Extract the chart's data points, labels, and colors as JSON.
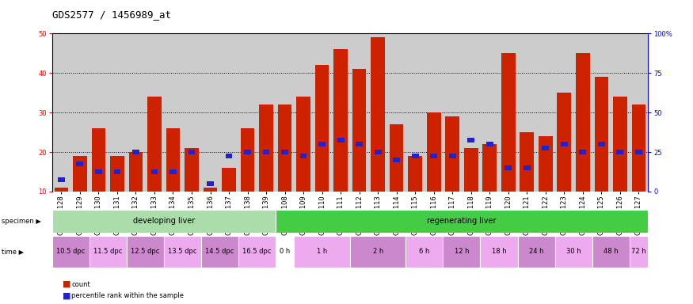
{
  "title": "GDS2577 / 1456989_at",
  "samples": [
    "GSM161128",
    "GSM161129",
    "GSM161130",
    "GSM161131",
    "GSM161132",
    "GSM161133",
    "GSM161134",
    "GSM161135",
    "GSM161136",
    "GSM161137",
    "GSM161138",
    "GSM161139",
    "GSM161108",
    "GSM161109",
    "GSM161110",
    "GSM161111",
    "GSM161112",
    "GSM161113",
    "GSM161114",
    "GSM161115",
    "GSM161116",
    "GSM161117",
    "GSM161118",
    "GSM161119",
    "GSM161120",
    "GSM161121",
    "GSM161122",
    "GSM161123",
    "GSM161124",
    "GSM161125",
    "GSM161126",
    "GSM161127"
  ],
  "count": [
    11,
    19,
    26,
    19,
    20,
    34,
    26,
    21,
    11,
    16,
    26,
    32,
    32,
    34,
    42,
    46,
    41,
    49,
    27,
    19,
    30,
    29,
    21,
    22,
    45,
    25,
    24,
    35,
    45,
    39,
    34,
    32
  ],
  "percentile": [
    13,
    17,
    15,
    15,
    20,
    15,
    15,
    20,
    12,
    19,
    20,
    20,
    20,
    19,
    22,
    23,
    22,
    20,
    18,
    19,
    19,
    19,
    23,
    22,
    16,
    16,
    21,
    22,
    20,
    22,
    20,
    20
  ],
  "specimen_groups": [
    {
      "label": "developing liver",
      "start": 0,
      "end": 12,
      "color": "#aaddaa"
    },
    {
      "label": "regenerating liver",
      "start": 12,
      "end": 32,
      "color": "#44cc44"
    }
  ],
  "time_groups": [
    {
      "label": "10.5 dpc",
      "start": 0,
      "end": 2,
      "color": "#cc88cc"
    },
    {
      "label": "11.5 dpc",
      "start": 2,
      "end": 4,
      "color": "#eeaaee"
    },
    {
      "label": "12.5 dpc",
      "start": 4,
      "end": 6,
      "color": "#cc88cc"
    },
    {
      "label": "13.5 dpc",
      "start": 6,
      "end": 8,
      "color": "#eeaaee"
    },
    {
      "label": "14.5 dpc",
      "start": 8,
      "end": 10,
      "color": "#cc88cc"
    },
    {
      "label": "16.5 dpc",
      "start": 10,
      "end": 12,
      "color": "#eeaaee"
    },
    {
      "label": "0 h",
      "start": 12,
      "end": 13,
      "color": "#ffffff"
    },
    {
      "label": "1 h",
      "start": 13,
      "end": 16,
      "color": "#eeaaee"
    },
    {
      "label": "2 h",
      "start": 16,
      "end": 19,
      "color": "#cc88cc"
    },
    {
      "label": "6 h",
      "start": 19,
      "end": 21,
      "color": "#eeaaee"
    },
    {
      "label": "12 h",
      "start": 21,
      "end": 23,
      "color": "#cc88cc"
    },
    {
      "label": "18 h",
      "start": 23,
      "end": 25,
      "color": "#eeaaee"
    },
    {
      "label": "24 h",
      "start": 25,
      "end": 27,
      "color": "#cc88cc"
    },
    {
      "label": "30 h",
      "start": 27,
      "end": 29,
      "color": "#eeaaee"
    },
    {
      "label": "48 h",
      "start": 29,
      "end": 31,
      "color": "#cc88cc"
    },
    {
      "label": "72 h",
      "start": 31,
      "end": 32,
      "color": "#eeaaee"
    }
  ],
  "bar_color": "#CC2200",
  "percentile_color": "#2222CC",
  "ylim": [
    10,
    50
  ],
  "yticks": [
    10,
    20,
    30,
    40,
    50
  ],
  "y2ticks_vals": [
    0,
    25,
    50,
    75,
    100
  ],
  "y2ticks_labels": [
    "0",
    "25",
    "50",
    "75",
    "100%"
  ],
  "background_color": "#cccccc",
  "title_fontsize": 9,
  "tick_fontsize": 6,
  "label_fontsize": 7,
  "annot_fontsize": 6
}
